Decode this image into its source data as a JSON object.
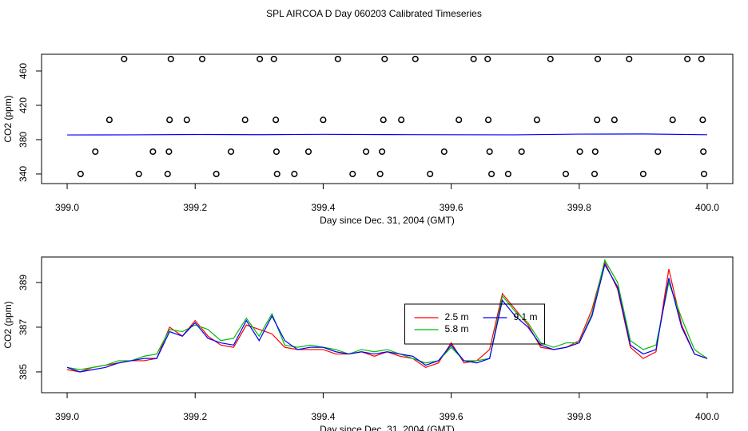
{
  "title": "SPL AIRCOA D  Day 060203  Calibrated Timeseries",
  "chart_data": [
    {
      "type": "scatter",
      "xlabel": "Day since Dec. 31, 2004 (GMT)",
      "ylabel": "CO2 (ppm)",
      "xlim": [
        398.96,
        400.04
      ],
      "ylim": [
        328.8,
        479.5
      ],
      "xticks": [
        {
          "value": 399,
          "label": "399.0"
        },
        {
          "value": 399.2,
          "label": "399.2"
        },
        {
          "value": 399.4,
          "label": "399.4"
        },
        {
          "value": 399.6,
          "label": "399.6"
        },
        {
          "value": 399.8,
          "label": "399.8"
        },
        {
          "value": 400,
          "label": "400.0"
        }
      ],
      "yticks": [
        340,
        380,
        420,
        460
      ],
      "series": [
        {
          "type": "scatter",
          "color": "#000000",
          "x": [
            399.089,
            399.162,
            399.211,
            399.301,
            399.323,
            399.423,
            399.496,
            399.544,
            399.635,
            399.657,
            399.755,
            399.829,
            399.878,
            399.969,
            399.991,
            399.066,
            399.16,
            399.187,
            399.278,
            399.326,
            399.4,
            399.494,
            399.522,
            399.612,
            399.658,
            399.734,
            399.828,
            399.855,
            399.946,
            399.993,
            399.044,
            399.134,
            399.159,
            399.256,
            399.327,
            399.377,
            399.467,
            399.492,
            399.589,
            399.66,
            399.71,
            399.801,
            399.825,
            399.923,
            399.994,
            399.021,
            399.112,
            399.157,
            399.233,
            399.328,
            399.355,
            399.446,
            399.489,
            399.567,
            399.663,
            399.689,
            399.779,
            399.824,
            399.9,
            399.995
          ],
          "values": [
            474,
            474,
            474,
            474,
            474,
            474,
            474,
            474,
            474,
            474,
            474,
            474,
            474,
            474,
            474,
            403,
            403,
            403,
            403,
            403,
            403,
            403,
            403,
            403,
            403,
            403,
            403,
            403,
            403,
            403,
            366,
            366,
            366,
            366,
            366,
            366,
            366,
            366,
            366,
            366,
            366,
            366,
            366,
            366,
            366,
            340,
            340,
            340,
            340,
            340,
            340,
            340,
            340,
            340,
            340,
            340,
            340,
            340,
            340,
            340
          ]
        },
        {
          "type": "line",
          "color": "#0000ff",
          "x": [
            399,
            399.1,
            399.2,
            399.3,
            399.4,
            399.5,
            399.6,
            399.7,
            399.8,
            399.9,
            400
          ],
          "values": [
            385.5,
            385.6,
            386.0,
            385.8,
            386.2,
            385.9,
            385.7,
            385.6,
            386.4,
            386.6,
            385.7
          ]
        }
      ]
    },
    {
      "type": "line",
      "xlabel": "Day since Dec. 31, 2004 (GMT)",
      "ylabel": "CO2 (ppm)",
      "xlim": [
        398.96,
        400.04
      ],
      "ylim": [
        384.07,
        390.14
      ],
      "xticks": [
        {
          "value": 399,
          "label": "399.0"
        },
        {
          "value": 399.2,
          "label": "399.2"
        },
        {
          "value": 399.4,
          "label": "399.4"
        },
        {
          "value": 399.6,
          "label": "399.6"
        },
        {
          "value": 399.8,
          "label": "399.8"
        },
        {
          "value": 400,
          "label": "400.0"
        }
      ],
      "yticks": [
        385,
        387,
        389
      ],
      "legend": "center",
      "x": [
        399,
        399.02,
        399.04,
        399.06,
        399.08,
        399.1,
        399.12,
        399.14,
        399.16,
        399.18,
        399.2,
        399.22,
        399.24,
        399.26,
        399.28,
        399.3,
        399.32,
        399.34,
        399.36,
        399.38,
        399.4,
        399.42,
        399.44,
        399.46,
        399.48,
        399.5,
        399.52,
        399.54,
        399.56,
        399.58,
        399.6,
        399.62,
        399.64,
        399.66,
        399.68,
        399.7,
        399.72,
        399.74,
        399.76,
        399.78,
        399.8,
        399.82,
        399.84,
        399.86,
        399.88,
        399.9,
        399.92,
        399.94,
        399.96,
        399.98,
        400
      ],
      "series": [
        {
          "name": "2.5 m",
          "color": "#ff0000",
          "values": [
            385.1,
            385.0,
            385.2,
            385.3,
            385.4,
            385.5,
            385.5,
            385.6,
            387.0,
            386.6,
            387.3,
            386.6,
            386.2,
            386.1,
            387.1,
            386.9,
            386.7,
            386.1,
            386.0,
            386.0,
            386.0,
            385.8,
            385.8,
            385.9,
            385.7,
            385.9,
            385.7,
            385.6,
            385.2,
            385.4,
            386.3,
            385.4,
            385.5,
            386.0,
            388.5,
            387.8,
            387.1,
            386.1,
            386.0,
            386.1,
            386.4,
            387.8,
            389.9,
            388.7,
            386.1,
            385.6,
            385.9,
            389.6,
            387.1,
            385.8,
            385.6
          ]
        },
        {
          "name": "5.8 m",
          "color": "#00bb00",
          "values": [
            385.2,
            385.1,
            385.2,
            385.3,
            385.5,
            385.5,
            385.7,
            385.8,
            386.9,
            386.8,
            387.1,
            386.9,
            386.4,
            386.5,
            387.4,
            386.6,
            387.6,
            386.2,
            386.1,
            386.2,
            386.1,
            386.0,
            385.8,
            386.0,
            385.9,
            386.0,
            385.8,
            385.6,
            385.4,
            385.5,
            386.1,
            385.5,
            385.5,
            385.6,
            388.4,
            387.7,
            387.2,
            386.3,
            386.1,
            386.3,
            386.3,
            387.6,
            390.0,
            389.0,
            386.4,
            386.0,
            386.2,
            389.0,
            387.4,
            386.0,
            385.6
          ]
        },
        {
          "name": "9.1 m",
          "color": "#0000ff",
          "values": [
            385.2,
            385.0,
            385.1,
            385.2,
            385.4,
            385.5,
            385.6,
            385.6,
            386.8,
            386.6,
            387.2,
            386.5,
            386.3,
            386.2,
            387.3,
            386.4,
            387.5,
            386.4,
            386.0,
            386.1,
            386.1,
            385.9,
            385.8,
            385.9,
            385.8,
            385.9,
            385.8,
            385.7,
            385.3,
            385.5,
            386.2,
            385.5,
            385.4,
            385.6,
            388.2,
            387.5,
            387.0,
            386.2,
            386.0,
            386.1,
            386.3,
            387.5,
            389.8,
            388.8,
            386.2,
            385.8,
            386.0,
            389.2,
            387.0,
            385.8,
            385.6
          ]
        }
      ]
    }
  ]
}
